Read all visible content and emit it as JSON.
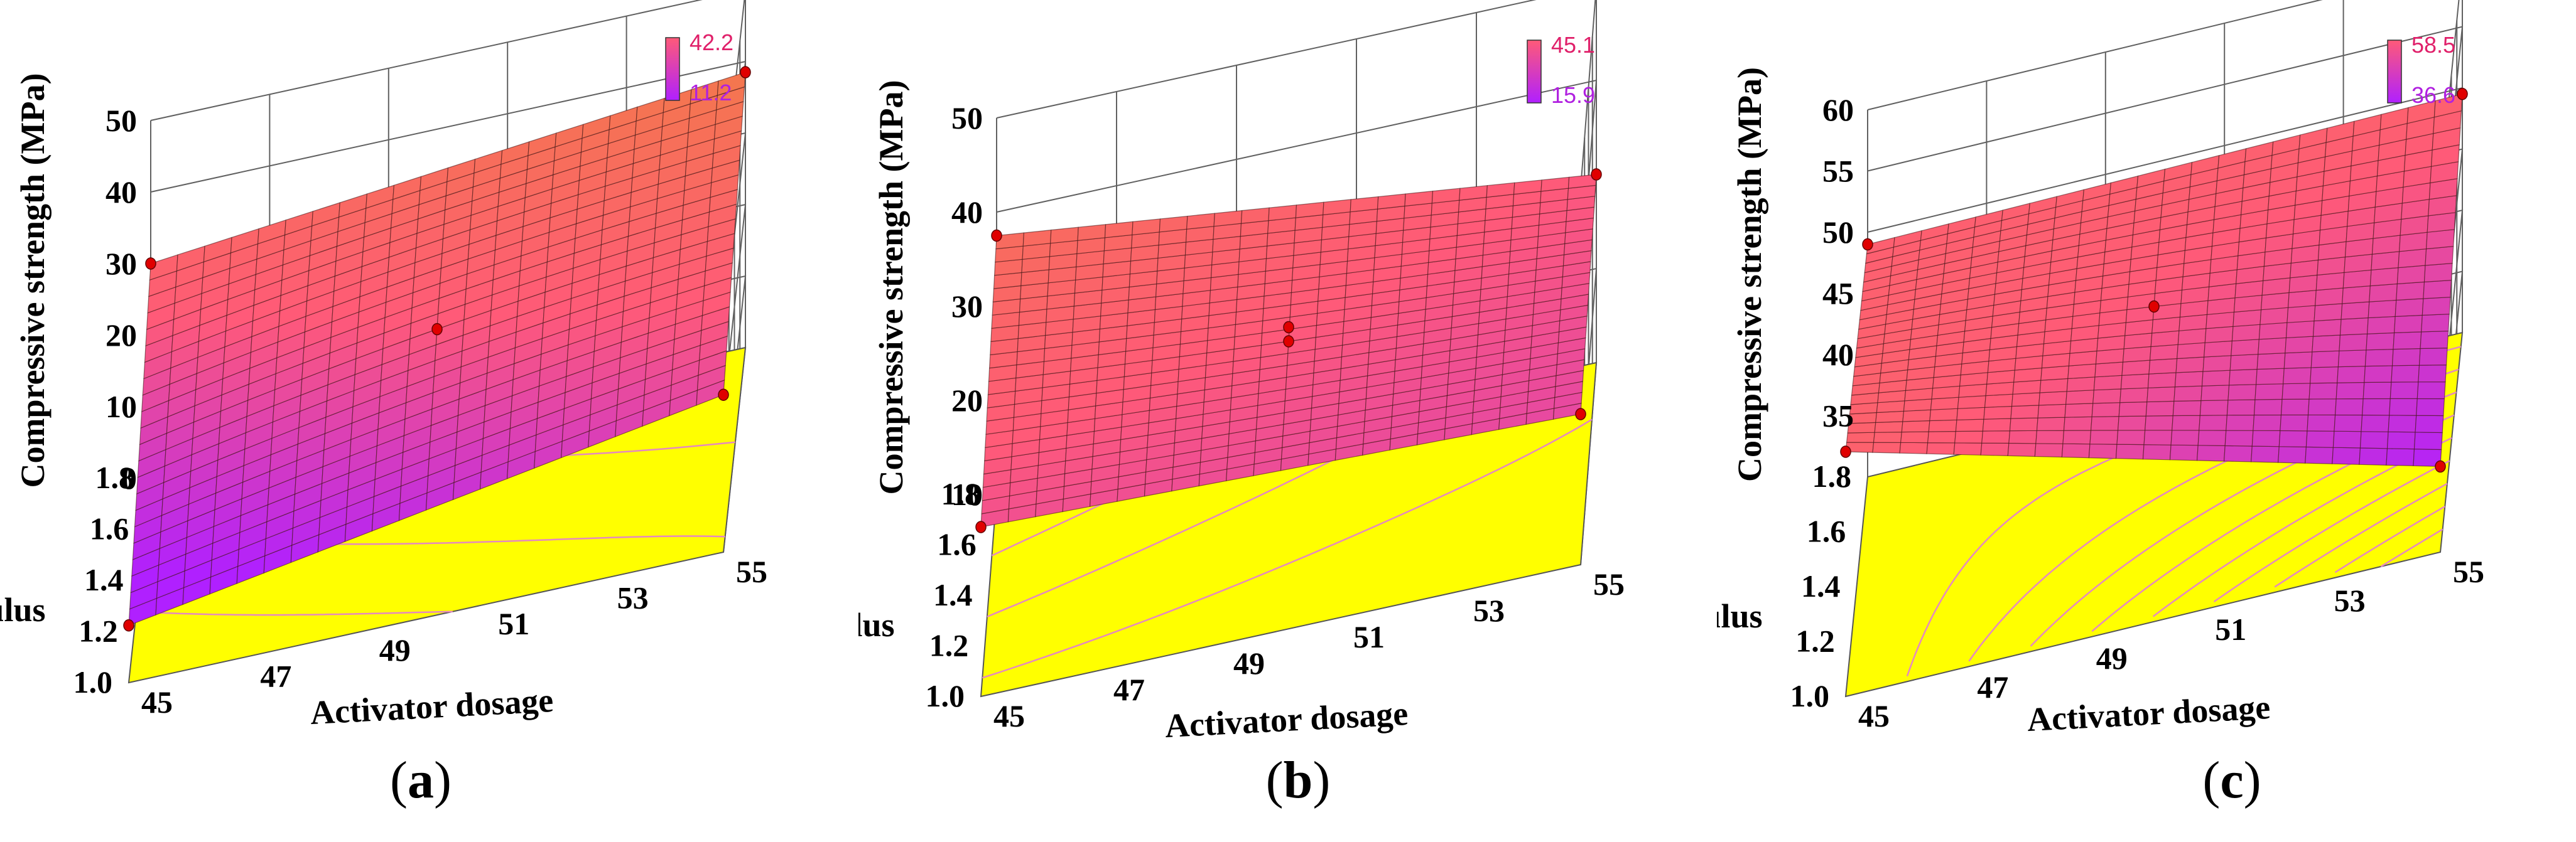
{
  "chart_data": [
    {
      "type": "surface3d",
      "panel_label": "a",
      "zlabel": "Compressive strength (MPa)",
      "xlabel": "Activator dosage",
      "ylabel": "Modulus",
      "x_ticks": [
        "45",
        "47",
        "49",
        "51",
        "53",
        "55"
      ],
      "y_ticks": [
        "1.0",
        "1.2",
        "1.4",
        "1.6",
        "1.8"
      ],
      "z_ticks": [
        "0",
        "10",
        "20",
        "30",
        "40",
        "50"
      ],
      "zlim": [
        0,
        50
      ],
      "colorbar": {
        "max": "42.2",
        "min": "11.2"
      },
      "corners": {
        "x45_m1.0": 8.0,
        "x55_m1.0": 22.0,
        "x45_m1.8": 30.0,
        "x55_m1.8": 38.5
      },
      "center": 26.0,
      "design_points": [
        {
          "x": 45,
          "m": 1.0,
          "z": 8.0
        },
        {
          "x": 55,
          "m": 1.0,
          "z": 22.0
        },
        {
          "x": 45,
          "m": 1.8,
          "z": 30.0
        },
        {
          "x": 55,
          "m": 1.8,
          "z": 38.5
        },
        {
          "x": 50,
          "m": 1.4,
          "z": 26.0
        }
      ]
    },
    {
      "type": "surface3d",
      "panel_label": "b",
      "zlabel": "Compressive strength (MPa)",
      "xlabel": "Activator dosage",
      "ylabel": "Modulus",
      "x_ticks": [
        "45",
        "47",
        "49",
        "51",
        "53",
        "55"
      ],
      "y_ticks": [
        "1.0",
        "1.2",
        "1.4",
        "1.6",
        "1.8"
      ],
      "z_ticks": [
        "10",
        "20",
        "30",
        "40",
        "50"
      ],
      "zlim": [
        10,
        50
      ],
      "colorbar": {
        "max": "45.1",
        "min": "15.9"
      },
      "corners": {
        "x45_m1.0": 28.0,
        "x55_m1.0": 26.0,
        "x45_m1.8": 37.5,
        "x55_m1.8": 30.0
      },
      "center": 30.0,
      "design_points": [
        {
          "x": 45,
          "m": 1.0,
          "z": 28.0
        },
        {
          "x": 55,
          "m": 1.0,
          "z": 26.0
        },
        {
          "x": 45,
          "m": 1.8,
          "z": 37.5
        },
        {
          "x": 55,
          "m": 1.8,
          "z": 30.0
        },
        {
          "x": 50,
          "m": 1.4,
          "z": 30.0
        },
        {
          "x": 50,
          "m": 1.4,
          "z": 31.5
        }
      ]
    },
    {
      "type": "surface3d",
      "panel_label": "c",
      "zlabel": "Compressive strength (MPa)",
      "xlabel": "Activator dosage",
      "ylabel": "Modulus",
      "x_ticks": [
        "45",
        "47",
        "49",
        "51",
        "53",
        "55"
      ],
      "y_ticks": [
        "1.0",
        "1.2",
        "1.4",
        "1.6",
        "1.8"
      ],
      "z_ticks": [
        "35",
        "40",
        "45",
        "50",
        "55",
        "60"
      ],
      "zlim": [
        30,
        60
      ],
      "colorbar": {
        "max": "58.5",
        "min": "36.6"
      },
      "corners": {
        "x45_m1.0": 50.0,
        "x55_m1.0": 37.0,
        "x45_m1.8": 49.0,
        "x55_m1.8": 49.5
      },
      "center": 47.0,
      "design_points": [
        {
          "x": 45,
          "m": 1.0,
          "z": 50.0
        },
        {
          "x": 55,
          "m": 1.0,
          "z": 37.0
        },
        {
          "x": 45,
          "m": 1.8,
          "z": 49.0
        },
        {
          "x": 55,
          "m": 1.8,
          "z": 49.5
        },
        {
          "x": 50,
          "m": 1.4,
          "z": 47.0
        }
      ]
    }
  ],
  "panels": [
    {
      "label_open": "(",
      "label_letter": "a",
      "label_close": ")"
    },
    {
      "label_open": "(",
      "label_letter": "b",
      "label_close": ")"
    },
    {
      "label_open": "(",
      "label_letter": "c",
      "label_close": ")"
    }
  ],
  "colors": {
    "floor": "#ffff00",
    "contour": "#e589c0",
    "grid": "#606060",
    "point": "#e00000",
    "low": "#b020ff",
    "mid": "#ff5a78",
    "high": "#f08040",
    "cb_text_max": "#e0206a",
    "cb_text_min": "#b020e0"
  }
}
